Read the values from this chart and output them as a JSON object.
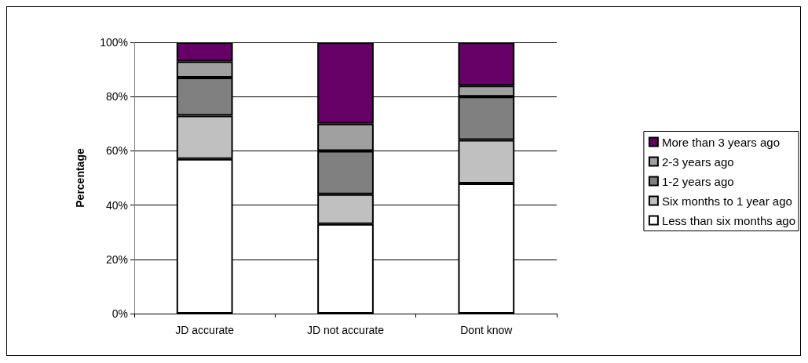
{
  "chart_data": {
    "type": "bar",
    "stacked": true,
    "ylabel": "Percentage",
    "categories": [
      "JD accurate",
      "JD not accurate",
      "Dont know"
    ],
    "series": [
      {
        "name": "Less than six months ago",
        "color": "#ffffff",
        "values": [
          57,
          33,
          48
        ]
      },
      {
        "name": "Six months to 1 year ago",
        "color": "#c0c0c0",
        "values": [
          16,
          11,
          16
        ]
      },
      {
        "name": "1-2 years ago",
        "color": "#808080",
        "values": [
          14,
          16,
          16
        ]
      },
      {
        "name": "2-3 years ago",
        "color": "#a0a0a0",
        "values": [
          6,
          10,
          4
        ]
      },
      {
        "name": "More than 3 years ago",
        "color": "#660066",
        "values": [
          7,
          30,
          16
        ]
      }
    ],
    "ylim": [
      0,
      100
    ],
    "yticks": [
      {
        "value": 0,
        "label": "0%"
      },
      {
        "value": 20,
        "label": "20%"
      },
      {
        "value": 40,
        "label": "40%"
      },
      {
        "value": 60,
        "label": "60%"
      },
      {
        "value": 80,
        "label": "80%"
      },
      {
        "value": 100,
        "label": "100%"
      }
    ],
    "grid": "y",
    "legend": "right"
  }
}
